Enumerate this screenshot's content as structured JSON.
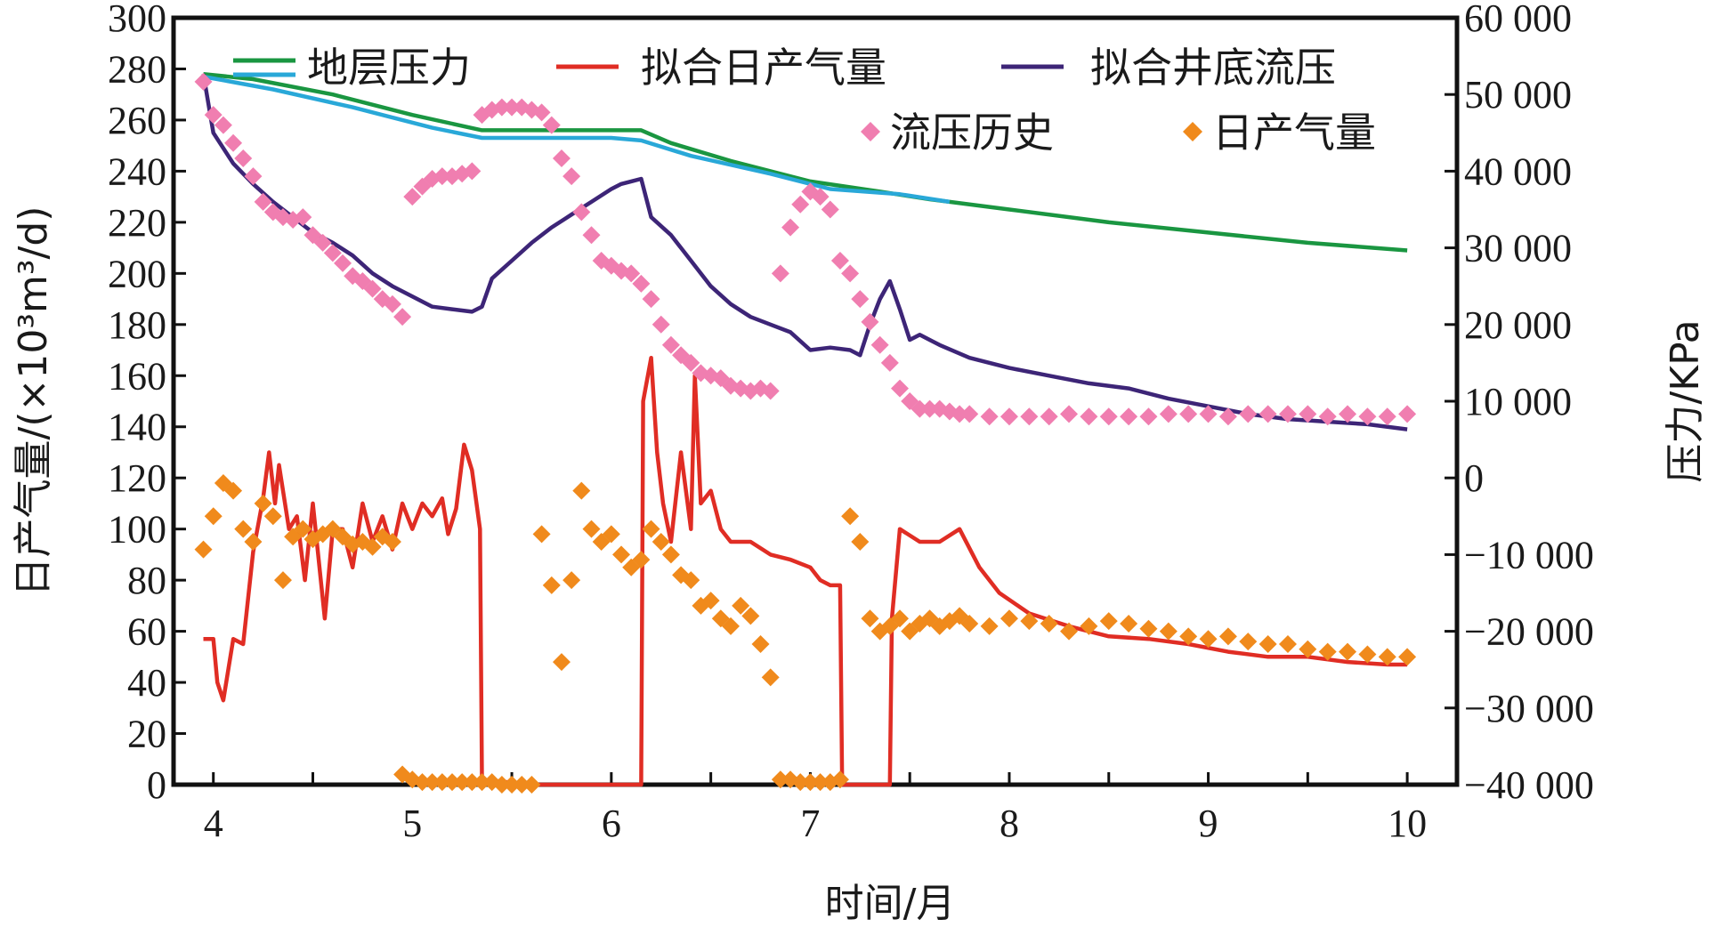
{
  "chart_data": {
    "type": "line",
    "xlabel": "时间/月",
    "ylabel_left": "日产气量/(×10³m³/d)",
    "ylabel_right": "压力/KPa",
    "xlim": [
      3.8,
      10.25
    ],
    "ylim_left": [
      0,
      300
    ],
    "ylim_right": [
      -40000,
      60000
    ],
    "x_ticks": [
      4,
      5,
      6,
      7,
      8,
      9,
      10
    ],
    "y_ticks_left": [
      0,
      20,
      40,
      60,
      80,
      100,
      120,
      140,
      160,
      180,
      200,
      220,
      240,
      260,
      280,
      300
    ],
    "y_ticks_right": [
      -40000,
      -30000,
      -20000,
      -10000,
      0,
      10000,
      20000,
      30000,
      40000,
      50000,
      60000
    ],
    "x_tick_labels": [
      "4",
      "5",
      "6",
      "7",
      "8",
      "9",
      "10"
    ],
    "y_tick_labels_left": [
      "0",
      "20",
      "40",
      "60",
      "80",
      "100",
      "120",
      "140",
      "160",
      "180",
      "200",
      "220",
      "240",
      "260",
      "280",
      "300"
    ],
    "y_tick_labels_right": [
      "−40 000",
      "−30 000",
      "−20 000",
      "−10 000",
      "0",
      "10 000",
      "20 000",
      "30 000",
      "40 000",
      "50 000",
      "60 000"
    ],
    "legend_placement": "top",
    "grid": false,
    "series": [
      {
        "name": "地层压力",
        "kind": "line",
        "color": "#1a9641",
        "axis": "left",
        "x": [
          3.95,
          4.2,
          4.6,
          5.0,
          5.35,
          5.6,
          5.9,
          6.15,
          6.3,
          6.6,
          7.0,
          7.35,
          7.6,
          8.0,
          8.5,
          9.0,
          9.5,
          10.0
        ],
        "values": [
          278,
          276,
          270,
          262,
          256,
          256,
          256,
          256,
          251,
          244,
          236,
          232,
          229,
          225,
          220,
          216,
          212,
          209
        ]
      },
      {
        "name": "地层压力",
        "kind": "line",
        "color": "#29a8d8",
        "axis": "left",
        "x": [
          3.95,
          4.3,
          4.7,
          5.1,
          5.35,
          5.6,
          6.0,
          6.15,
          6.4,
          6.8,
          7.1,
          7.45,
          7.7
        ],
        "values": [
          277,
          272,
          265,
          257,
          253,
          253,
          253,
          252,
          246,
          239,
          233,
          231,
          228
        ]
      },
      {
        "name": "拟合日产气量",
        "kind": "line",
        "color": "#e02d24",
        "axis": "left",
        "x": [
          3.95,
          4.0,
          4.02,
          4.05,
          4.1,
          4.15,
          4.2,
          4.25,
          4.28,
          4.31,
          4.33,
          4.38,
          4.42,
          4.46,
          4.5,
          4.56,
          4.6,
          4.65,
          4.7,
          4.75,
          4.8,
          4.85,
          4.9,
          4.95,
          5.0,
          5.05,
          5.1,
          5.15,
          5.18,
          5.22,
          5.26,
          5.3,
          5.34,
          5.35,
          5.6,
          5.9,
          6.15,
          6.16,
          6.2,
          6.23,
          6.26,
          6.3,
          6.35,
          6.4,
          6.42,
          6.45,
          6.5,
          6.55,
          6.6,
          6.7,
          6.8,
          6.9,
          7.0,
          7.05,
          7.1,
          7.15,
          7.16,
          7.35,
          7.4,
          7.41,
          7.45,
          7.55,
          7.65,
          7.75,
          7.85,
          7.95,
          8.1,
          8.3,
          8.5,
          8.7,
          8.9,
          9.1,
          9.3,
          9.5,
          9.7,
          9.9,
          10.0
        ],
        "values": [
          57,
          57,
          40,
          33,
          57,
          55,
          91,
          112,
          130,
          110,
          125,
          100,
          105,
          80,
          110,
          65,
          100,
          100,
          85,
          110,
          95,
          105,
          92,
          110,
          100,
          110,
          105,
          112,
          98,
          108,
          133,
          123,
          100,
          2,
          0,
          0,
          0,
          150,
          167,
          130,
          110,
          95,
          130,
          100,
          160,
          110,
          115,
          100,
          95,
          95,
          90,
          88,
          85,
          80,
          78,
          78,
          0,
          0,
          0,
          65,
          100,
          95,
          95,
          100,
          85,
          75,
          67,
          62,
          58,
          57,
          55,
          52,
          50,
          50,
          48,
          47,
          47
        ]
      },
      {
        "name": "拟合井底流压",
        "kind": "line",
        "color": "#3d2577",
        "axis": "left",
        "x": [
          3.95,
          4.0,
          4.1,
          4.2,
          4.3,
          4.4,
          4.5,
          4.6,
          4.7,
          4.8,
          4.9,
          5.0,
          5.1,
          5.2,
          5.3,
          5.35,
          5.4,
          5.5,
          5.6,
          5.7,
          5.8,
          5.9,
          6.0,
          6.05,
          6.1,
          6.15,
          6.2,
          6.3,
          6.4,
          6.5,
          6.6,
          6.7,
          6.8,
          6.9,
          7.0,
          7.1,
          7.2,
          7.25,
          7.3,
          7.35,
          7.4,
          7.45,
          7.5,
          7.55,
          7.65,
          7.8,
          8.0,
          8.2,
          8.4,
          8.6,
          8.8,
          9.0,
          9.2,
          9.4,
          9.6,
          9.8,
          10.0
        ],
        "values": [
          278,
          255,
          243,
          235,
          228,
          222,
          216,
          212,
          207,
          200,
          195,
          191,
          187,
          186,
          185,
          187,
          198,
          205,
          212,
          218,
          223,
          228,
          233,
          235,
          236,
          237,
          222,
          215,
          205,
          195,
          188,
          183,
          180,
          177,
          170,
          171,
          170,
          168,
          180,
          190,
          197,
          186,
          174,
          176,
          172,
          167,
          163,
          160,
          157,
          155,
          151,
          148,
          145,
          143,
          142,
          141,
          139
        ]
      },
      {
        "name": "流压历史",
        "kind": "scatter",
        "color": "#f07eb0",
        "axis": "left",
        "x": [
          3.95,
          4.0,
          4.05,
          4.1,
          4.15,
          4.2,
          4.25,
          4.3,
          4.35,
          4.4,
          4.45,
          4.5,
          4.55,
          4.6,
          4.65,
          4.7,
          4.75,
          4.8,
          4.85,
          4.9,
          4.95,
          5.0,
          5.05,
          5.1,
          5.15,
          5.2,
          5.25,
          5.3,
          5.35,
          5.4,
          5.45,
          5.5,
          5.55,
          5.6,
          5.65,
          5.7,
          5.75,
          5.8,
          5.85,
          5.9,
          5.95,
          6.0,
          6.05,
          6.1,
          6.15,
          6.2,
          6.25,
          6.3,
          6.35,
          6.4,
          6.45,
          6.5,
          6.55,
          6.6,
          6.65,
          6.7,
          6.75,
          6.8,
          6.85,
          6.9,
          6.95,
          7.0,
          7.05,
          7.1,
          7.15,
          7.2,
          7.25,
          7.3,
          7.35,
          7.4,
          7.45,
          7.5,
          7.55,
          7.6,
          7.65,
          7.7,
          7.75,
          7.8,
          7.9,
          8.0,
          8.1,
          8.2,
          8.3,
          8.4,
          8.5,
          8.6,
          8.7,
          8.8,
          8.9,
          9.0,
          9.1,
          9.2,
          9.3,
          9.4,
          9.5,
          9.6,
          9.7,
          9.8,
          9.9,
          10.0
        ],
        "values": [
          275,
          262,
          258,
          251,
          245,
          238,
          228,
          224,
          222,
          221,
          222,
          215,
          212,
          208,
          204,
          199,
          197,
          194,
          190,
          188,
          183,
          230,
          234,
          237,
          238,
          238,
          239,
          240,
          262,
          264,
          265,
          265,
          265,
          264,
          263,
          258,
          245,
          238,
          224,
          215,
          205,
          203,
          201,
          200,
          196,
          190,
          180,
          172,
          168,
          165,
          161,
          160,
          159,
          156,
          155,
          154,
          155,
          154,
          200,
          218,
          227,
          232,
          230,
          225,
          205,
          200,
          190,
          181,
          172,
          165,
          155,
          150,
          147,
          147,
          147,
          146,
          145,
          145,
          144,
          144,
          144,
          144,
          145,
          144,
          144,
          144,
          144,
          145,
          145,
          145,
          144,
          145,
          145,
          145,
          145,
          144,
          145,
          144,
          144,
          145
        ]
      },
      {
        "name": "日产气量",
        "kind": "scatter",
        "color": "#f08a1c",
        "axis": "left",
        "x": [
          3.95,
          4.0,
          4.05,
          4.1,
          4.15,
          4.2,
          4.25,
          4.3,
          4.35,
          4.4,
          4.45,
          4.5,
          4.55,
          4.6,
          4.65,
          4.7,
          4.75,
          4.8,
          4.85,
          4.9,
          4.95,
          5.0,
          5.05,
          5.1,
          5.15,
          5.2,
          5.25,
          5.3,
          5.35,
          5.4,
          5.45,
          5.5,
          5.55,
          5.6,
          5.65,
          5.7,
          5.75,
          5.8,
          5.85,
          5.9,
          5.95,
          6.0,
          6.05,
          6.1,
          6.15,
          6.2,
          6.25,
          6.3,
          6.35,
          6.4,
          6.45,
          6.5,
          6.55,
          6.6,
          6.65,
          6.7,
          6.75,
          6.8,
          6.85,
          6.9,
          6.95,
          7.0,
          7.05,
          7.1,
          7.15,
          7.2,
          7.25,
          7.3,
          7.35,
          7.4,
          7.45,
          7.5,
          7.55,
          7.6,
          7.65,
          7.7,
          7.75,
          7.8,
          7.9,
          8.0,
          8.1,
          8.2,
          8.3,
          8.4,
          8.5,
          8.6,
          8.7,
          8.8,
          8.9,
          9.0,
          9.1,
          9.2,
          9.3,
          9.4,
          9.5,
          9.6,
          9.7,
          9.8,
          9.9,
          10.0
        ],
        "values": [
          92,
          105,
          118,
          115,
          100,
          95,
          110,
          105,
          80,
          97,
          100,
          96,
          98,
          100,
          97,
          94,
          95,
          93,
          97,
          95,
          4,
          2,
          1,
          1,
          1,
          1,
          1,
          1,
          1,
          1,
          0,
          0,
          0,
          0,
          98,
          78,
          48,
          80,
          115,
          100,
          95,
          98,
          90,
          85,
          88,
          100,
          95,
          90,
          82,
          80,
          70,
          72,
          65,
          62,
          70,
          66,
          55,
          42,
          2,
          2,
          1,
          1,
          1,
          1,
          2,
          105,
          95,
          65,
          60,
          62,
          65,
          60,
          63,
          65,
          62,
          64,
          66,
          63,
          62,
          65,
          64,
          63,
          60,
          62,
          64,
          63,
          61,
          60,
          58,
          57,
          58,
          56,
          55,
          55,
          53,
          52,
          52,
          51,
          50,
          50
        ]
      }
    ]
  }
}
